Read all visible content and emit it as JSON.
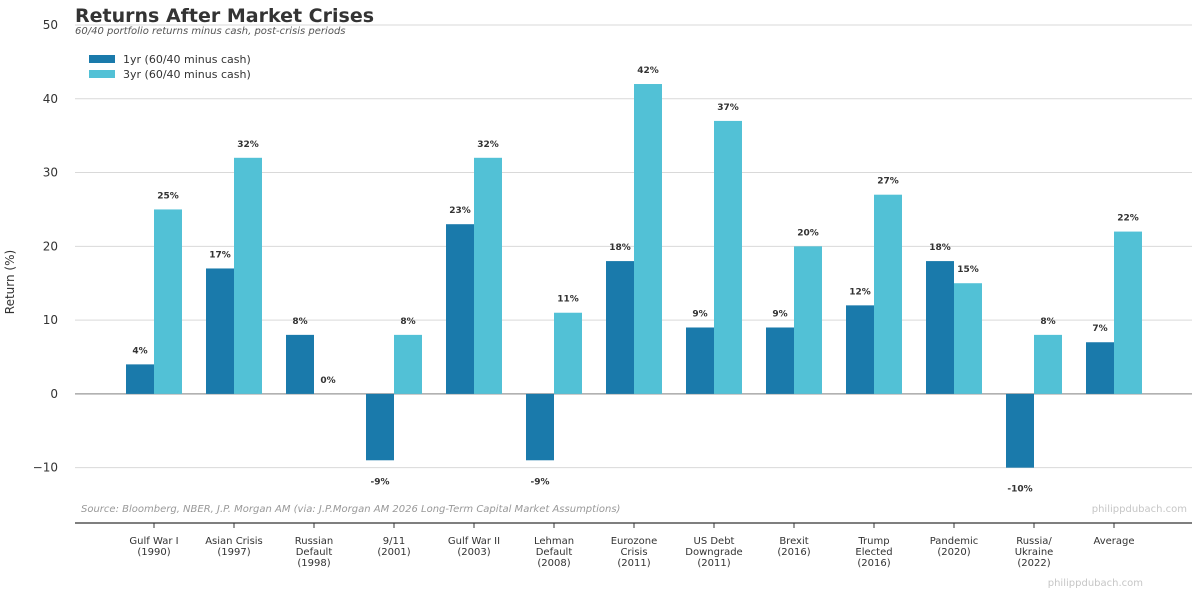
{
  "chart_data": {
    "type": "bar",
    "title": "Returns After Market Crises",
    "subtitle": "60/40 portfolio returns minus cash, post-crisis periods",
    "ylabel": "Return (%)",
    "xlabel": "",
    "ylim": [
      -17.5,
      50
    ],
    "yticks": [
      -10,
      0,
      10,
      20,
      30,
      40,
      50
    ],
    "ytick_labels": [
      "−10",
      "0",
      "10",
      "20",
      "30",
      "40",
      "50"
    ],
    "grid": true,
    "legend_position": "top-left",
    "categories": [
      [
        "Gulf War I",
        "(1990)"
      ],
      [
        "Asian Crisis",
        "(1997)"
      ],
      [
        "Russian",
        "Default",
        "(1998)"
      ],
      [
        "9/11",
        "(2001)"
      ],
      [
        "Gulf War II",
        "(2003)"
      ],
      [
        "Lehman",
        "Default",
        "(2008)"
      ],
      [
        "Eurozone",
        "Crisis",
        "(2011)"
      ],
      [
        "US Debt",
        "Downgrade",
        "(2011)"
      ],
      [
        "Brexit",
        "(2016)"
      ],
      [
        "Trump",
        "Elected",
        "(2016)"
      ],
      [
        "Pandemic",
        "(2020)"
      ],
      [
        "Russia/",
        "Ukraine",
        "(2022)"
      ],
      [
        "Average"
      ]
    ],
    "series": [
      {
        "name": "1yr (60/40 minus cash)",
        "color": "#1a7aab",
        "values": [
          4,
          17,
          8,
          -9,
          23,
          -9,
          18,
          9,
          9,
          12,
          18,
          -10,
          7
        ],
        "labels": [
          "4%",
          "17%",
          "8%",
          "-9%",
          "23%",
          "-9%",
          "18%",
          "9%",
          "9%",
          "12%",
          "18%",
          "-10%",
          "7%"
        ]
      },
      {
        "name": "3yr (60/40 minus cash)",
        "color": "#52c1d6",
        "values": [
          25,
          32,
          0,
          8,
          32,
          11,
          42,
          37,
          20,
          27,
          15,
          8,
          22
        ],
        "labels": [
          "25%",
          "32%",
          "0%",
          "8%",
          "32%",
          "11%",
          "42%",
          "37%",
          "20%",
          "27%",
          "15%",
          "8%",
          "22%"
        ]
      }
    ],
    "source": "Source: Bloomberg, NBER, J.P. Morgan AM (via: J.P.Morgan AM 2026 Long-Term Capital Market Assumptions)",
    "watermark": "philippdubach.com"
  }
}
